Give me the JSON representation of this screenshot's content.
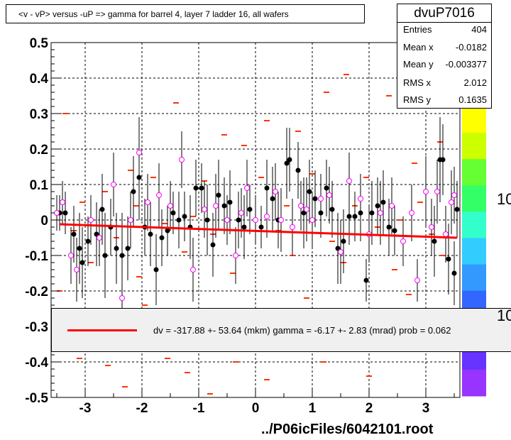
{
  "title": "<v - vP>       versus  -uP =>  gamma for barrel 4, layer 7 ladder 16, all wafers",
  "stats": {
    "name": "dvuP7016",
    "rows": [
      {
        "key": "Entries",
        "value": "404"
      },
      {
        "key": "Mean x",
        "value": "-0.0182"
      },
      {
        "key": "Mean y",
        "value": "-0.003377"
      },
      {
        "key": "RMS x",
        "value": "2.012"
      },
      {
        "key": "RMS y",
        "value": "0.1635"
      }
    ]
  },
  "fit_legend": "dv = -317.88 +- 53.64 (mkm) gamma =   -6.17 +-  2.83 (mrad) prob = 0.062",
  "footer": "../P06icFiles/6042101.root",
  "palette_labels": [
    "10",
    "10"
  ],
  "colors": {
    "marker_fill": "#000000",
    "marker_open": "#ff00ff",
    "dash": "#ff3300",
    "fit": "#ff0000",
    "grid": "#000000"
  },
  "chart_data": {
    "type": "scatter",
    "xlim": [
      -3.6,
      3.6
    ],
    "ylim": [
      -0.5,
      0.5
    ],
    "x_ticks": [
      {
        "v": -3,
        "label": "-3"
      },
      {
        "v": -2,
        "label": "-2"
      },
      {
        "v": -1,
        "label": "-1"
      },
      {
        "v": 0,
        "label": "0"
      },
      {
        "v": 1,
        "label": "1"
      },
      {
        "v": 2,
        "label": "2"
      },
      {
        "v": 3,
        "label": "3"
      }
    ],
    "y_ticks": [
      {
        "v": 0.5,
        "label": "0.5"
      },
      {
        "v": 0.4,
        "label": "0.4"
      },
      {
        "v": 0.3,
        "label": "0.3"
      },
      {
        "v": 0.2,
        "label": "0.2"
      },
      {
        "v": 0.1,
        "label": "0.1"
      },
      {
        "v": 0,
        "label": "0"
      },
      {
        "v": -0.1,
        "label": "-0.1"
      },
      {
        "v": -0.2,
        "label": "-0.2"
      },
      {
        "v": -0.3,
        "label": "-0.3"
      },
      {
        "v": -0.4,
        "label": "-0.4"
      },
      {
        "v": -0.5,
        "label": "-0.5"
      }
    ],
    "grid": true,
    "fit_line": {
      "x": [
        -3.45,
        3.55
      ],
      "y": [
        -0.012,
        -0.05
      ]
    },
    "filled_points": [
      [
        -3.45,
        0.02,
        0.05
      ],
      [
        -3.35,
        0.02,
        0.06
      ],
      [
        -3.2,
        -0.04,
        0.08
      ],
      [
        -3.1,
        -0.08,
        0.1
      ],
      [
        -3.05,
        -0.12,
        0.1
      ],
      [
        -2.95,
        -0.06,
        0.07
      ],
      [
        -2.8,
        -0.04,
        0.09
      ],
      [
        -2.7,
        0.03,
        0.1
      ],
      [
        -2.65,
        -0.1,
        0.12
      ],
      [
        -2.55,
        -0.02,
        0.08
      ],
      [
        -2.45,
        -0.08,
        0.1
      ],
      [
        -2.35,
        -0.1,
        0.12
      ],
      [
        -2.25,
        -0.08,
        0.09
      ],
      [
        -2.15,
        0.08,
        0.1
      ],
      [
        -2.05,
        0.12,
        0.12
      ],
      [
        -1.95,
        -0.02,
        0.08
      ],
      [
        -1.85,
        -0.04,
        0.09
      ],
      [
        -1.75,
        -0.14,
        0.1
      ],
      [
        -1.65,
        -0.05,
        0.08
      ],
      [
        -1.55,
        -0.03,
        0.07
      ],
      [
        -1.45,
        0.02,
        0.06
      ],
      [
        -1.35,
        0.0,
        0.08
      ],
      [
        -1.25,
        0.01,
        0.07
      ],
      [
        -1.15,
        -0.02,
        0.09
      ],
      [
        -1.05,
        0.09,
        0.08
      ],
      [
        -0.95,
        0.09,
        0.07
      ],
      [
        -0.85,
        0.0,
        0.1
      ],
      [
        -0.75,
        -0.07,
        0.09
      ],
      [
        -0.65,
        0.07,
        0.1
      ],
      [
        -0.55,
        0.04,
        0.08
      ],
      [
        -0.45,
        0.05,
        0.09
      ],
      [
        -0.3,
        0.0,
        0.08
      ],
      [
        -0.2,
        -0.02,
        0.09
      ],
      [
        -0.1,
        0.03,
        0.07
      ],
      [
        0.1,
        -0.02,
        0.06
      ],
      [
        0.2,
        0.09,
        0.08
      ],
      [
        0.3,
        0.06,
        0.09
      ],
      [
        0.4,
        0.0,
        0.08
      ],
      [
        0.55,
        0.16,
        0.1
      ],
      [
        0.6,
        0.17,
        0.09
      ],
      [
        0.75,
        0.14,
        0.08
      ],
      [
        0.85,
        0.02,
        0.1
      ],
      [
        0.95,
        0.08,
        0.09
      ],
      [
        1.05,
        0.06,
        0.08
      ],
      [
        1.15,
        0.02,
        0.07
      ],
      [
        1.25,
        0.09,
        0.08
      ],
      [
        1.35,
        0.03,
        0.08
      ],
      [
        1.45,
        -0.08,
        0.1
      ],
      [
        1.55,
        -0.06,
        0.09
      ],
      [
        1.65,
        0.01,
        0.08
      ],
      [
        1.75,
        0.01,
        0.07
      ],
      [
        1.85,
        0.02,
        0.08
      ],
      [
        1.95,
        -0.17,
        0.06
      ],
      [
        2.05,
        0.02,
        0.09
      ],
      [
        2.15,
        0.04,
        0.08
      ],
      [
        2.25,
        0.05,
        0.09
      ],
      [
        2.35,
        -0.02,
        0.08
      ],
      [
        2.45,
        -0.03,
        0.07
      ],
      [
        3.15,
        -0.06,
        0.1
      ],
      [
        3.25,
        0.17,
        0.12
      ],
      [
        3.3,
        0.17,
        0.1
      ],
      [
        3.4,
        -0.11,
        0.1
      ],
      [
        3.5,
        -0.15,
        0.09
      ],
      [
        3.55,
        0.03,
        0.08
      ]
    ],
    "open_points": [
      [
        -3.5,
        0.02,
        0.05
      ],
      [
        -3.4,
        0.05,
        0.06
      ],
      [
        -3.25,
        -0.1,
        0.08
      ],
      [
        -3.15,
        -0.14,
        0.09
      ],
      [
        -2.9,
        0.0,
        0.07
      ],
      [
        -2.75,
        -0.05,
        0.08
      ],
      [
        -2.5,
        0.1,
        0.09
      ],
      [
        -2.35,
        -0.22,
        0.07
      ],
      [
        -2.2,
        0.0,
        0.08
      ],
      [
        -2.05,
        0.19,
        0.1
      ],
      [
        -1.9,
        0.05,
        0.08
      ],
      [
        -1.7,
        0.07,
        0.09
      ],
      [
        -1.5,
        0.04,
        0.07
      ],
      [
        -1.3,
        0.17,
        0.08
      ],
      [
        -1.1,
        -0.14,
        0.09
      ],
      [
        -0.9,
        0.03,
        0.08
      ],
      [
        -0.7,
        0.04,
        0.09
      ],
      [
        -0.5,
        0.0,
        0.07
      ],
      [
        -0.35,
        -0.1,
        0.08
      ],
      [
        -0.25,
        0.02,
        0.07
      ],
      [
        -0.15,
        0.09,
        0.08
      ],
      [
        0.0,
        0.0,
        0.07
      ],
      [
        0.2,
        0.01,
        0.06
      ],
      [
        0.35,
        0.08,
        0.08
      ],
      [
        0.45,
        0.0,
        0.09
      ],
      [
        0.65,
        -0.02,
        0.08
      ],
      [
        0.8,
        0.04,
        0.07
      ],
      [
        0.9,
        0.03,
        0.09
      ],
      [
        1.0,
        0.0,
        0.08
      ],
      [
        1.15,
        0.06,
        0.07
      ],
      [
        1.3,
        0.07,
        0.08
      ],
      [
        1.5,
        -0.09,
        0.09
      ],
      [
        1.65,
        0.11,
        0.08
      ],
      [
        1.85,
        0.06,
        0.07
      ],
      [
        2.0,
        -0.04,
        0.08
      ],
      [
        2.2,
        0.02,
        0.09
      ],
      [
        2.4,
        0.04,
        0.08
      ],
      [
        2.6,
        -0.06,
        0.07
      ],
      [
        2.75,
        0.02,
        0.08
      ],
      [
        2.85,
        -0.17,
        0.06
      ],
      [
        3.0,
        0.08,
        0.1
      ],
      [
        3.1,
        -0.02,
        0.08
      ],
      [
        3.2,
        0.08,
        0.09
      ],
      [
        3.35,
        -0.04,
        0.08
      ],
      [
        3.45,
        0.05,
        0.09
      ],
      [
        3.5,
        0.07,
        0.08
      ]
    ],
    "dashes": [
      [
        -3.35,
        0.3
      ],
      [
        -2.2,
        0.14
      ],
      [
        -1.4,
        0.33
      ],
      [
        -0.55,
        0.24
      ],
      [
        -0.2,
        0.21
      ],
      [
        0.2,
        0.28
      ],
      [
        0.75,
        0.25
      ],
      [
        1.25,
        0.36
      ],
      [
        1.6,
        0.41
      ],
      [
        2.35,
        0.35
      ],
      [
        2.8,
        0.16
      ],
      [
        3.25,
        0.22
      ],
      [
        -3.05,
        0.05
      ],
      [
        -2.65,
        0.08
      ],
      [
        -1.8,
        0.12
      ],
      [
        -0.9,
        0.11
      ],
      [
        0.1,
        0.12
      ],
      [
        1.0,
        0.13
      ],
      [
        1.95,
        0.12
      ],
      [
        2.9,
        0.05
      ],
      [
        -3.2,
        -0.03
      ],
      [
        -2.45,
        -0.05
      ],
      [
        -1.6,
        -0.01
      ],
      [
        -0.75,
        -0.04
      ],
      [
        0.4,
        -0.03
      ],
      [
        1.35,
        -0.06
      ],
      [
        2.15,
        -0.02
      ],
      [
        3.1,
        -0.04
      ],
      [
        -2.9,
        -0.12
      ],
      [
        -2.05,
        -0.16
      ],
      [
        -1.25,
        -0.09
      ],
      [
        -0.4,
        -0.15
      ],
      [
        0.65,
        -0.1
      ],
      [
        1.55,
        -0.12
      ],
      [
        2.45,
        -0.14
      ],
      [
        3.3,
        -0.1
      ],
      [
        -3.45,
        -0.2
      ],
      [
        -1.95,
        -0.24
      ],
      [
        0.9,
        -0.22
      ],
      [
        2.7,
        -0.21
      ],
      [
        -2.6,
        -0.41
      ],
      [
        -2.3,
        -0.47
      ],
      [
        -1.55,
        -0.39
      ],
      [
        -1.2,
        -0.43
      ],
      [
        -0.35,
        -0.4
      ],
      [
        0.2,
        -0.45
      ],
      [
        1.2,
        -0.4
      ],
      [
        2.0,
        -0.44
      ],
      [
        -3.1,
        -0.39
      ],
      [
        -0.8,
        -0.49
      ],
      [
        0.55,
        0.04
      ],
      [
        1.75,
        0.04
      ],
      [
        -1.1,
        0.01
      ],
      [
        2.55,
        0.0
      ],
      [
        -2.1,
        0.04
      ]
    ],
    "z_palette": [
      "#ffff00",
      "#ccff00",
      "#66ff33",
      "#33ff66",
      "#33ffcc",
      "#33ccff",
      "#3399ff",
      "#3366ff",
      "#3333ff",
      "#6633ff",
      "#9933ff"
    ]
  }
}
